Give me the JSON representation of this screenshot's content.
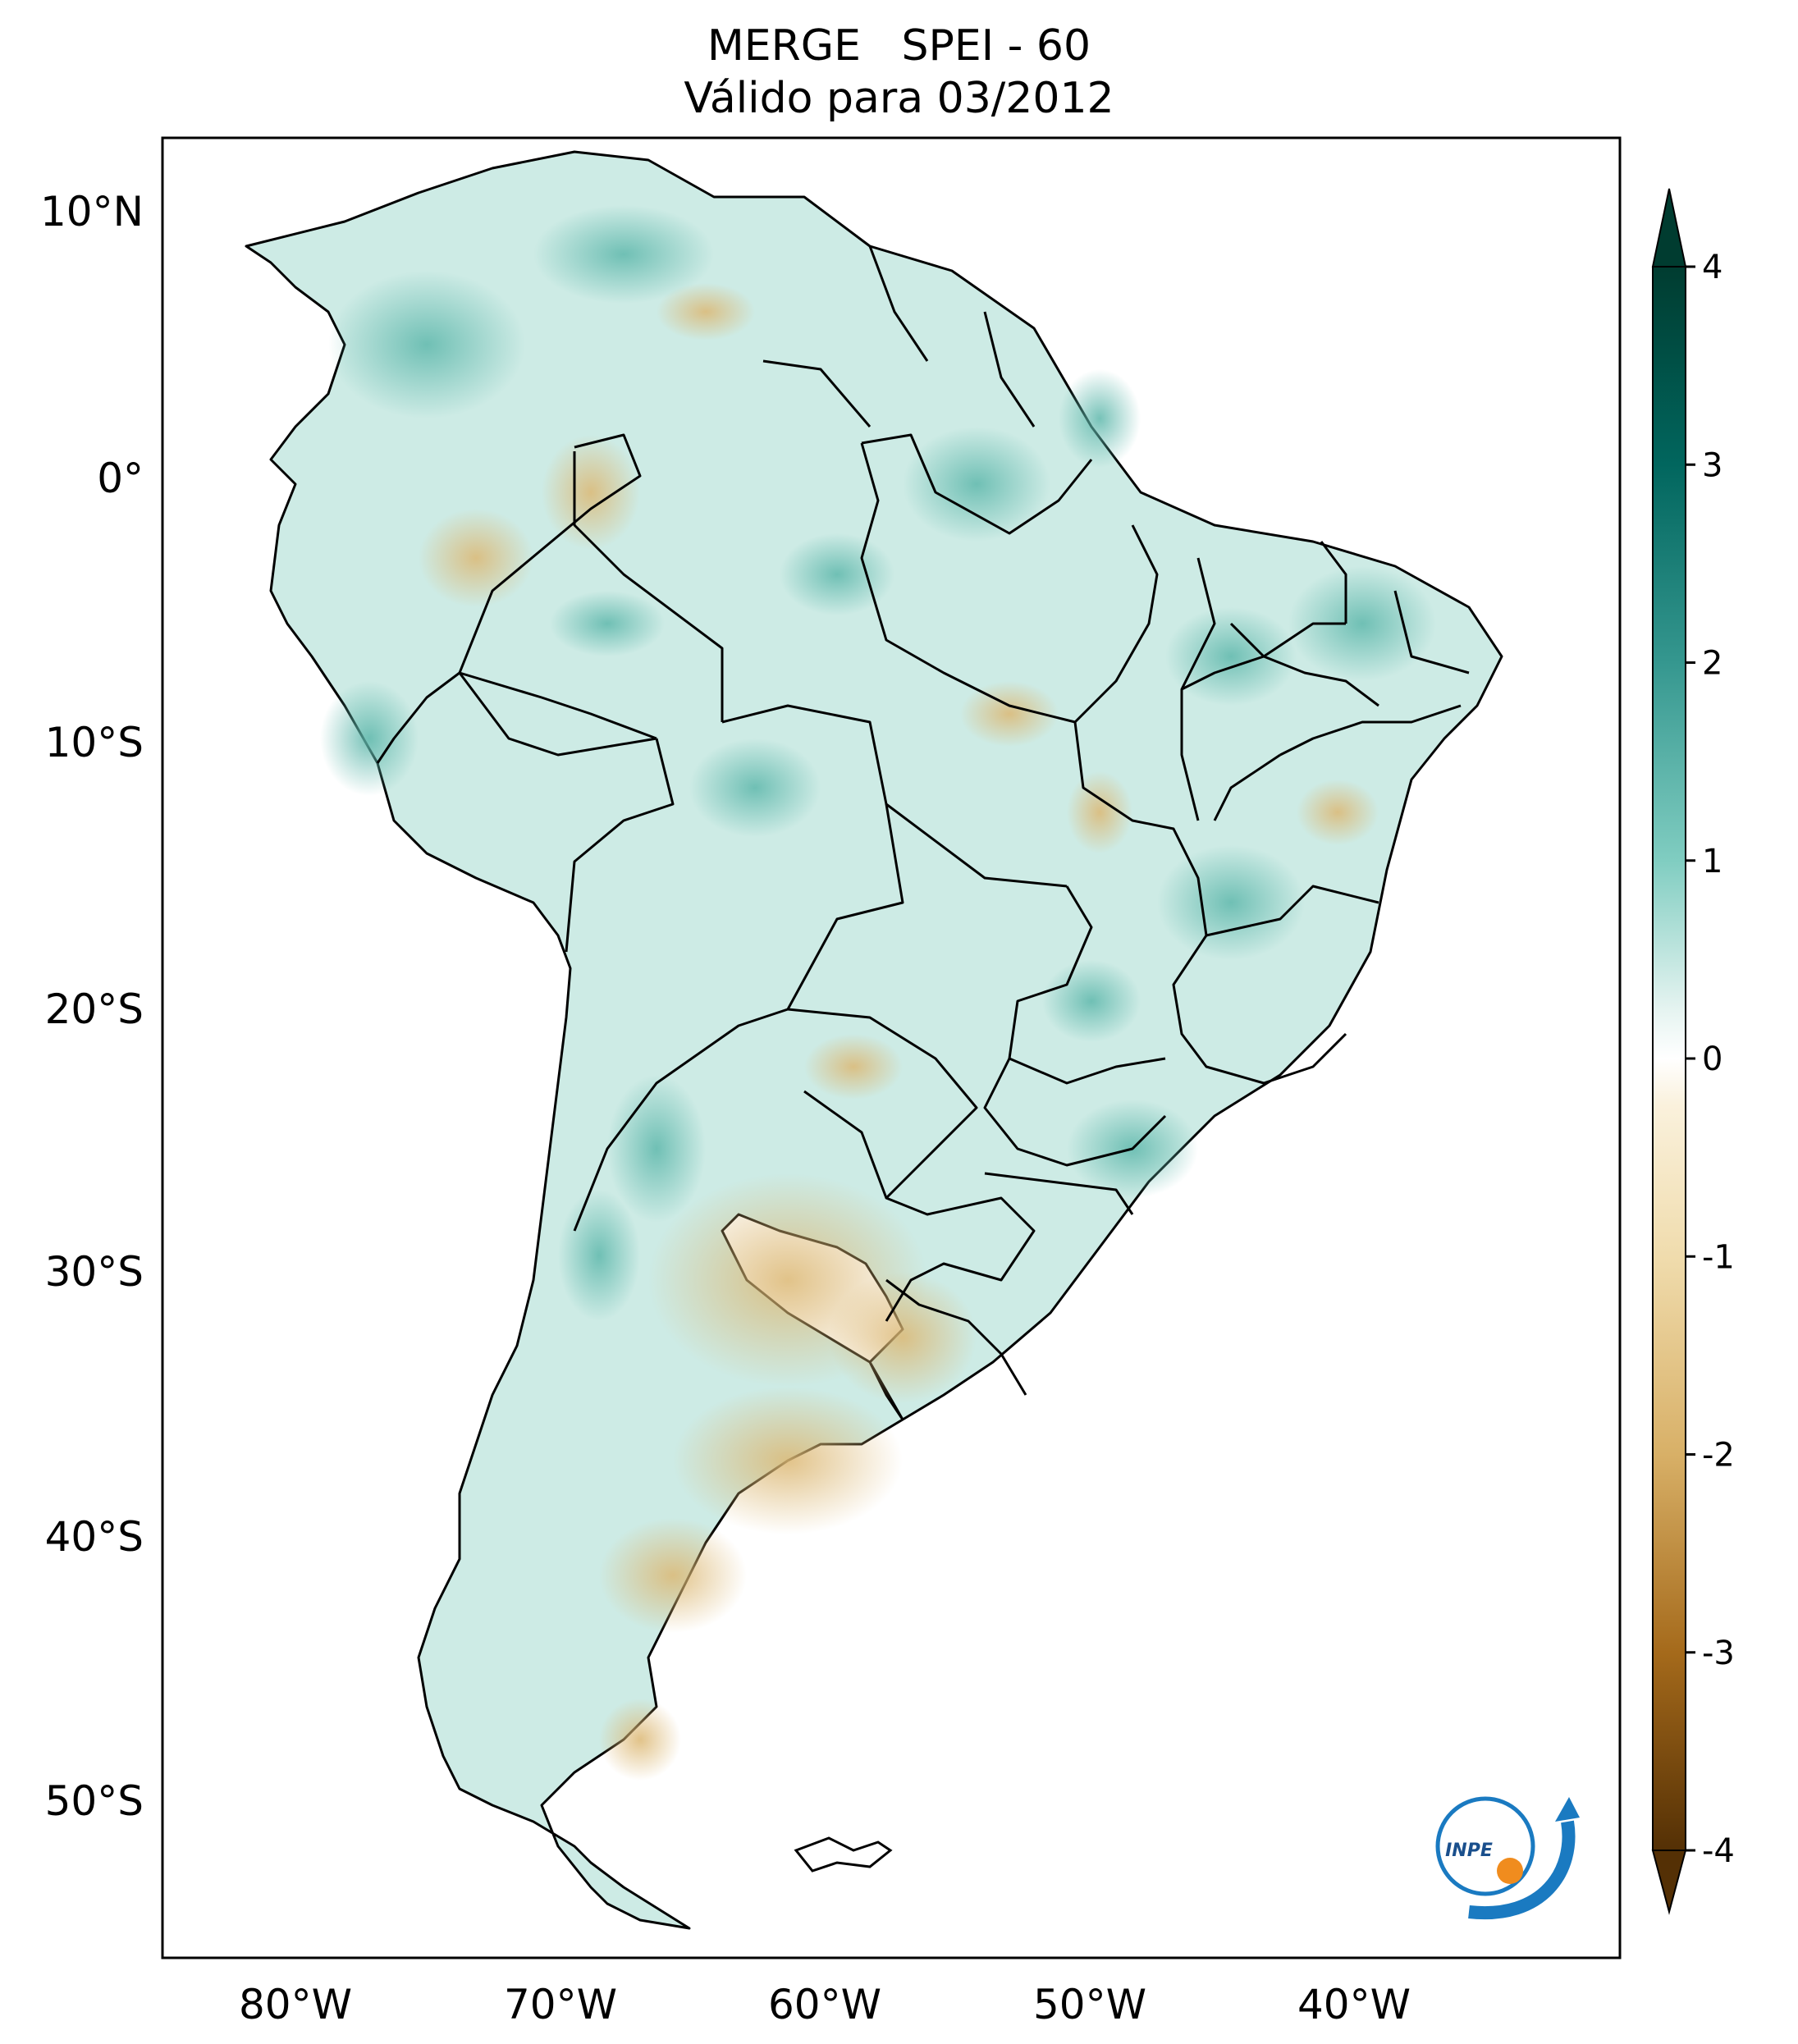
{
  "title": {
    "line1": "MERGE   SPEI - 60",
    "line2": "Válido para 03/2012"
  },
  "map": {
    "extent": {
      "lon": [
        -85,
        -30
      ],
      "lat": [
        -56,
        13
      ]
    },
    "lat_ticks": [
      {
        "value": 10,
        "label": "10°N"
      },
      {
        "value": 0,
        "label": "0°"
      },
      {
        "value": -10,
        "label": "10°S"
      },
      {
        "value": -20,
        "label": "20°S"
      },
      {
        "value": -30,
        "label": "30°S"
      },
      {
        "value": -40,
        "label": "40°S"
      },
      {
        "value": -50,
        "label": "50°S"
      }
    ],
    "lon_ticks": [
      {
        "value": -80,
        "label": "80°W"
      },
      {
        "value": -70,
        "label": "70°W"
      },
      {
        "value": -60,
        "label": "60°W"
      },
      {
        "value": -50,
        "label": "50°W"
      },
      {
        "value": -40,
        "label": "40°W"
      }
    ],
    "logo_text": "INPE"
  },
  "colorbar": {
    "range": [
      -4,
      4
    ],
    "extend": "both",
    "ticks": [
      {
        "value": 4,
        "label": "4"
      },
      {
        "value": 3,
        "label": "3"
      },
      {
        "value": 2,
        "label": "2"
      },
      {
        "value": 1,
        "label": "1"
      },
      {
        "value": 0,
        "label": "0"
      },
      {
        "value": -1,
        "label": "-1"
      },
      {
        "value": -2,
        "label": "-2"
      },
      {
        "value": -3,
        "label": "-3"
      },
      {
        "value": -4,
        "label": "-4"
      }
    ],
    "colors": {
      "wet_extreme": "#003c30",
      "wet_strong": "#01665e",
      "wet_mid": "#35978f",
      "wet_light": "#80cdc1",
      "wet_faint": "#c7eae5",
      "neutral": "#ffffff",
      "dry_faint": "#f6e8c3",
      "dry_light": "#dfc27d",
      "dry_mid": "#bf812d",
      "dry_strong": "#8c510a",
      "dry_extreme": "#543005"
    }
  }
}
